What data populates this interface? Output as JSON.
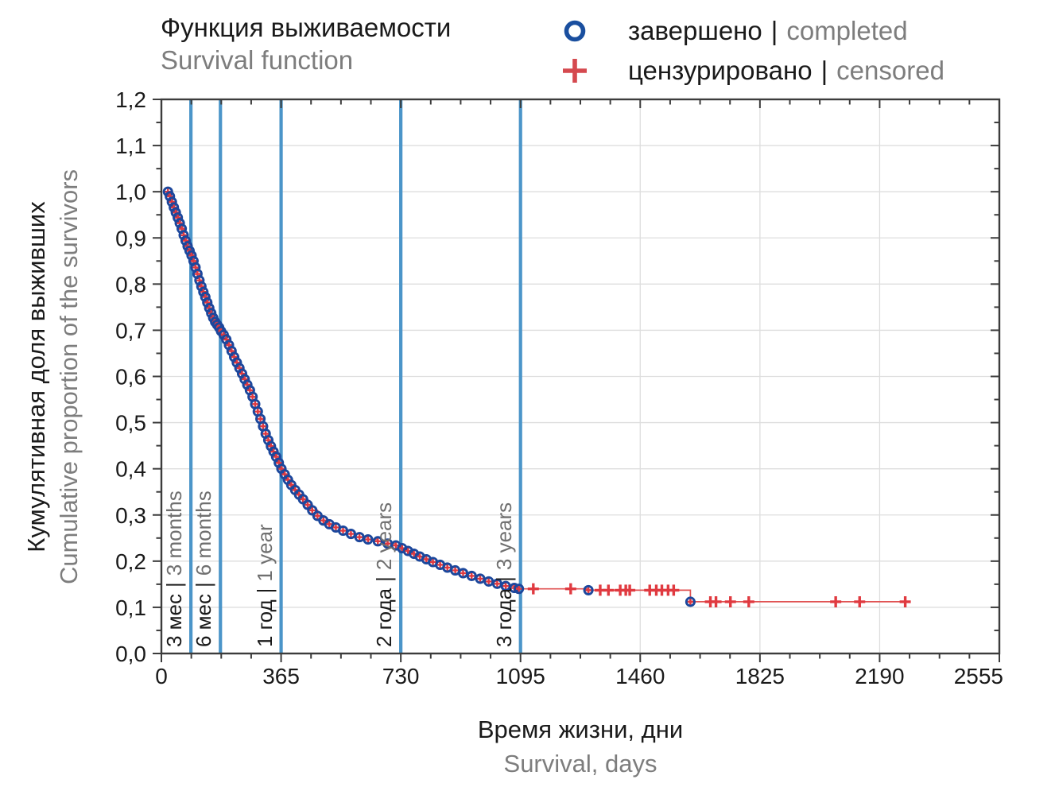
{
  "title": {
    "ru": "Функция выживаемости",
    "en": "Survival function"
  },
  "legend": {
    "separator": "|",
    "completed": {
      "ru": "завершено",
      "en": "completed",
      "marker": "circle-icon"
    },
    "censored": {
      "ru": "цензурировано",
      "en": "censored",
      "marker": "plus-icon"
    }
  },
  "axes": {
    "x": {
      "ru": "Время жизни, дни",
      "en": "Survival, days"
    },
    "y": {
      "ru": "Кумулятивная доля выживших",
      "en": "Cumulative proportion of the survivors"
    }
  },
  "chart_data": {
    "type": "line",
    "subtype": "kaplan-meier-step",
    "xlim": [
      0,
      2555
    ],
    "ylim": [
      0,
      1.2
    ],
    "xticks": [
      0,
      365,
      730,
      1095,
      1460,
      1825,
      2190,
      2555
    ],
    "ytick_values": [
      0,
      0.1,
      0.2,
      0.3,
      0.4,
      0.5,
      0.6,
      0.7,
      0.8,
      0.9,
      1.0,
      1.1,
      1.2
    ],
    "ytick_labels": [
      "0,0",
      "0,1",
      "0,2",
      "0,3",
      "0,4",
      "0,5",
      "0,6",
      "0,7",
      "0,8",
      "0,9",
      "1,0",
      "1,1",
      "1,2"
    ],
    "x_minor_step": 91.25,
    "y_minor_step": 0.05,
    "grid": true,
    "legend_position": "top-right",
    "reference_lines": [
      {
        "x": 90,
        "ru": "3 мес",
        "en": "3 months"
      },
      {
        "x": 180,
        "ru": "6 мес",
        "en": "6 months"
      },
      {
        "x": 365,
        "ru": "1 год",
        "en": "1 year"
      },
      {
        "x": 730,
        "ru": "2 года",
        "en": "2 years"
      },
      {
        "x": 1095,
        "ru": "3 года",
        "en": "3 years"
      }
    ],
    "survival_curve": [
      [
        20,
        1.0
      ],
      [
        26,
        0.99
      ],
      [
        32,
        0.978
      ],
      [
        38,
        0.966
      ],
      [
        44,
        0.955
      ],
      [
        50,
        0.944
      ],
      [
        56,
        0.932
      ],
      [
        62,
        0.92
      ],
      [
        68,
        0.906
      ],
      [
        74,
        0.894
      ],
      [
        80,
        0.882
      ],
      [
        86,
        0.872
      ],
      [
        92,
        0.862
      ],
      [
        98,
        0.85
      ],
      [
        104,
        0.836
      ],
      [
        110,
        0.822
      ],
      [
        116,
        0.808
      ],
      [
        122,
        0.795
      ],
      [
        128,
        0.783
      ],
      [
        134,
        0.772
      ],
      [
        140,
        0.76
      ],
      [
        146,
        0.748
      ],
      [
        152,
        0.737
      ],
      [
        158,
        0.727
      ],
      [
        164,
        0.718
      ],
      [
        170,
        0.712
      ],
      [
        176,
        0.706
      ],
      [
        182,
        0.698
      ],
      [
        190,
        0.69
      ],
      [
        198,
        0.68
      ],
      [
        206,
        0.668
      ],
      [
        214,
        0.655
      ],
      [
        222,
        0.642
      ],
      [
        230,
        0.63
      ],
      [
        238,
        0.618
      ],
      [
        246,
        0.606
      ],
      [
        254,
        0.594
      ],
      [
        262,
        0.582
      ],
      [
        270,
        0.57
      ],
      [
        278,
        0.556
      ],
      [
        286,
        0.54
      ],
      [
        294,
        0.524
      ],
      [
        302,
        0.508
      ],
      [
        310,
        0.492
      ],
      [
        318,
        0.476
      ],
      [
        326,
        0.462
      ],
      [
        334,
        0.449
      ],
      [
        342,
        0.437
      ],
      [
        350,
        0.426
      ],
      [
        358,
        0.413
      ],
      [
        366,
        0.4
      ],
      [
        376,
        0.388
      ],
      [
        386,
        0.376
      ],
      [
        396,
        0.365
      ],
      [
        408,
        0.354
      ],
      [
        420,
        0.344
      ],
      [
        432,
        0.334
      ],
      [
        446,
        0.322
      ],
      [
        460,
        0.31
      ],
      [
        476,
        0.298
      ],
      [
        494,
        0.288
      ],
      [
        512,
        0.28
      ],
      [
        532,
        0.273
      ],
      [
        554,
        0.266
      ],
      [
        578,
        0.259
      ],
      [
        604,
        0.252
      ],
      [
        630,
        0.247
      ],
      [
        660,
        0.243
      ],
      [
        690,
        0.238
      ],
      [
        715,
        0.234
      ],
      [
        734,
        0.228
      ],
      [
        752,
        0.222
      ],
      [
        770,
        0.216
      ],
      [
        788,
        0.21
      ],
      [
        808,
        0.204
      ],
      [
        828,
        0.198
      ],
      [
        850,
        0.192
      ],
      [
        872,
        0.186
      ],
      [
        896,
        0.18
      ],
      [
        920,
        0.174
      ],
      [
        946,
        0.168
      ],
      [
        972,
        0.162
      ],
      [
        998,
        0.156
      ],
      [
        1024,
        0.151
      ],
      [
        1050,
        0.146
      ],
      [
        1076,
        0.142
      ],
      [
        1090,
        0.14
      ]
    ],
    "tail_events": [
      [
        1302,
        0.137
      ],
      [
        1613,
        0.112
      ]
    ],
    "tail_censored": [
      [
        1134,
        0.14
      ],
      [
        1248,
        0.14
      ],
      [
        1338,
        0.137
      ],
      [
        1363,
        0.137
      ],
      [
        1399,
        0.137
      ],
      [
        1416,
        0.137
      ],
      [
        1428,
        0.137
      ],
      [
        1489,
        0.137
      ],
      [
        1509,
        0.137
      ],
      [
        1526,
        0.137
      ],
      [
        1545,
        0.137
      ],
      [
        1562,
        0.137
      ],
      [
        1674,
        0.112
      ],
      [
        1691,
        0.112
      ],
      [
        1735,
        0.112
      ],
      [
        1791,
        0.112
      ],
      [
        2056,
        0.112
      ],
      [
        2129,
        0.112
      ],
      [
        2268,
        0.112
      ]
    ],
    "curve_end_day": 2268,
    "colors": {
      "event_marker": "#1c479c",
      "censor_marker": "#e03a40",
      "step_line": "#e05252",
      "reference_line": "#4b95c9",
      "grid": "#dedede",
      "frame": "#3c3c3c",
      "text_primary": "#1a1a1a",
      "text_secondary": "#7d7d7d",
      "legend_circle": "#1a4f9f",
      "legend_plus": "#d5494f"
    }
  }
}
